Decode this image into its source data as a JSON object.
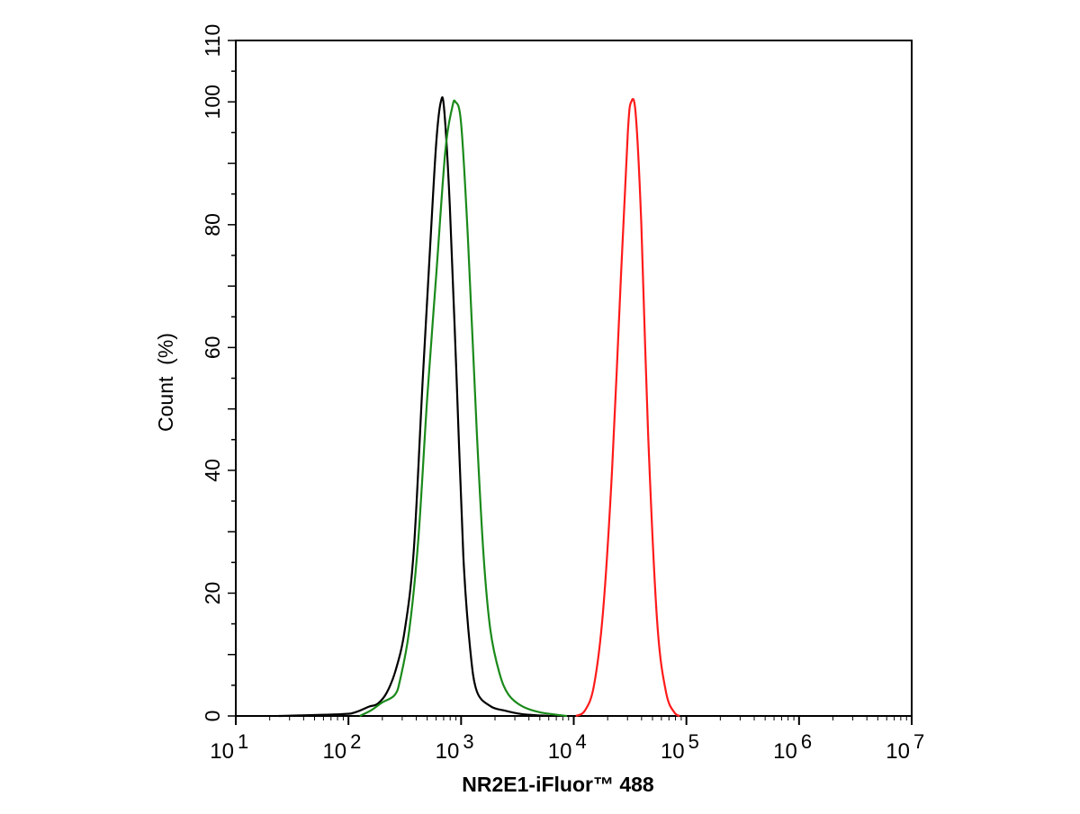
{
  "chart_data": {
    "type": "line",
    "title": "",
    "xlabel": "NR2E1-iFluor™ 488",
    "ylabel": "Count  (%)",
    "xscale": "log",
    "xlim_log10": [
      1,
      7
    ],
    "ylim": [
      0,
      110
    ],
    "x_tick_labels": [
      {
        "base": "10",
        "exp": "1",
        "log10": 1
      },
      {
        "base": "10",
        "exp": "2",
        "log10": 2
      },
      {
        "base": "10",
        "exp": "3",
        "log10": 3
      },
      {
        "base": "10",
        "exp": "4",
        "log10": 4
      },
      {
        "base": "10",
        "exp": "5",
        "log10": 5
      },
      {
        "base": "10",
        "exp": "6",
        "log10": 6
      },
      {
        "base": "10",
        "exp": "7",
        "log10": 7
      }
    ],
    "y_ticks": [
      "0",
      "20",
      "40",
      "60",
      "80",
      "100",
      "110"
    ],
    "grid": false,
    "series": [
      {
        "name": "black",
        "color": "#000000",
        "x_log10": [
          1.38,
          1.94,
          2.06,
          2.18,
          2.26,
          2.34,
          2.42,
          2.5,
          2.58,
          2.66,
          2.73,
          2.78,
          2.82,
          2.85,
          2.9,
          2.96,
          3.02,
          3.08,
          3.14,
          3.26,
          3.38,
          3.54,
          3.78
        ],
        "y": [
          0,
          0.3,
          0.6,
          1.5,
          2,
          3.8,
          7.5,
          14,
          27,
          55,
          78,
          93.5,
          100,
          98.7,
          83,
          55,
          26,
          11,
          4,
          1.6,
          0.9,
          0.3,
          0
        ]
      },
      {
        "name": "green",
        "color": "#1a8a1a",
        "x_log10": [
          2.1,
          2.2,
          2.3,
          2.41,
          2.46,
          2.54,
          2.62,
          2.7,
          2.78,
          2.86,
          2.92,
          2.95,
          3.0,
          3.06,
          3.14,
          3.2,
          3.26,
          3.34,
          3.42,
          3.54,
          3.7,
          3.94
        ],
        "y": [
          0,
          0.9,
          2.2,
          3.4,
          6,
          14,
          28.7,
          52,
          72,
          92,
          99,
          100,
          96.5,
          78,
          46,
          26,
          14,
          7,
          3.5,
          1.6,
          0.6,
          0
        ]
      },
      {
        "name": "red",
        "color": "#ff1a1a",
        "x_log10": [
          4.02,
          4.1,
          4.18,
          4.26,
          4.34,
          4.42,
          4.48,
          4.51,
          4.55,
          4.6,
          4.66,
          4.74,
          4.82,
          4.9,
          4.94
        ],
        "y": [
          0,
          0.9,
          5,
          17,
          40,
          72,
          95,
          100,
          98,
          80,
          46,
          15.5,
          3.8,
          0.4,
          0
        ]
      }
    ]
  }
}
